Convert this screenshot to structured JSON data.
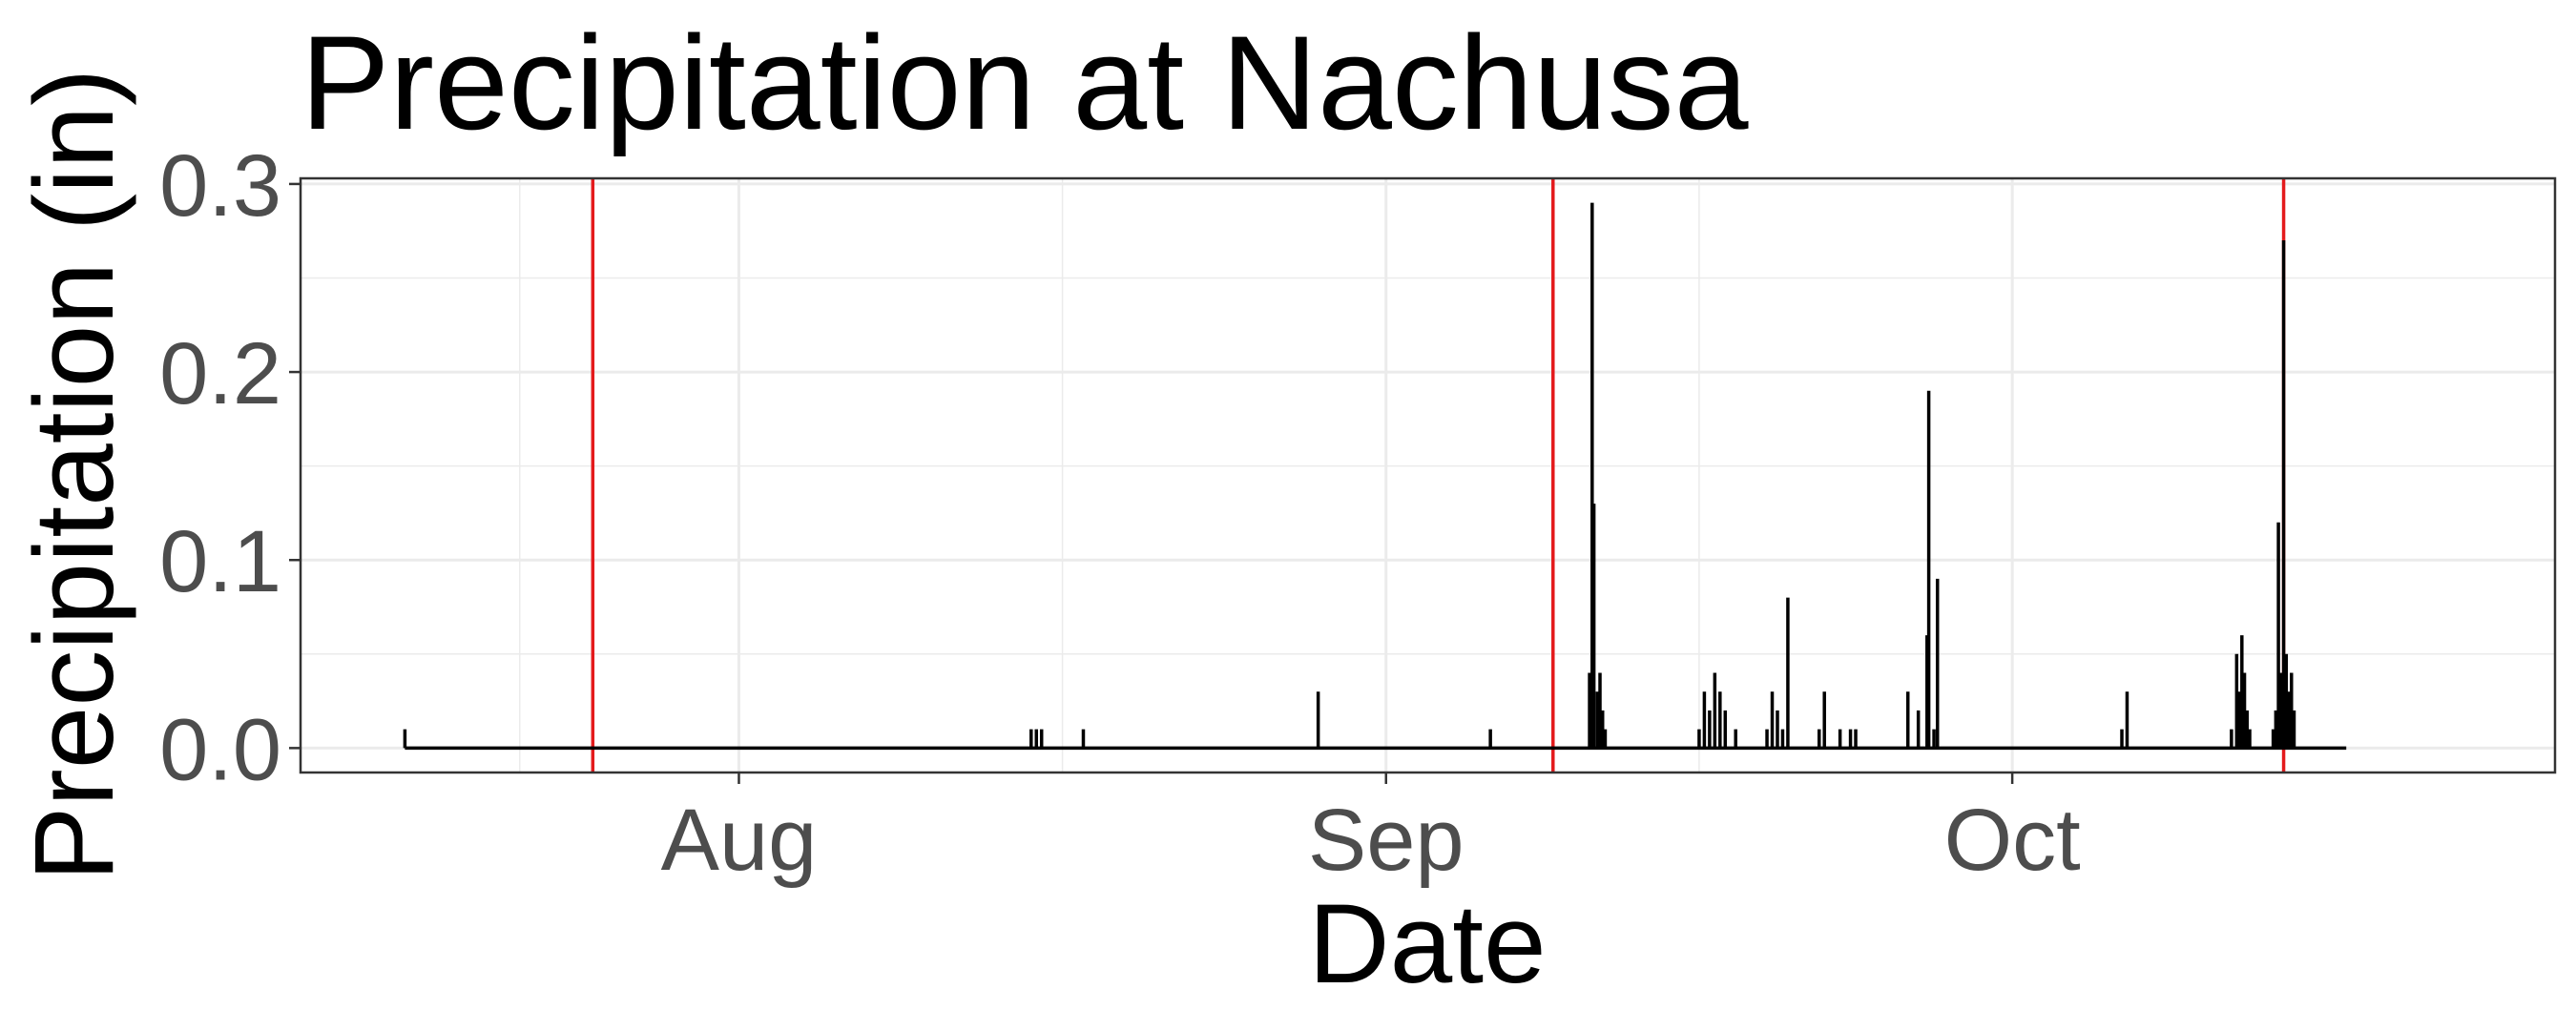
{
  "chart_data": {
    "type": "line",
    "title": "Precipitation at Nachusa",
    "xlabel": "Date",
    "ylabel": "Precipitation (in)",
    "xlim": [
      "2023-07-11",
      "2023-10-27"
    ],
    "ylim": [
      -0.013,
      0.303
    ],
    "x_ticks": [
      {
        "date": "2023-08-01",
        "label": "Aug"
      },
      {
        "date": "2023-09-01",
        "label": "Sep"
      },
      {
        "date": "2023-10-01",
        "label": "Oct"
      }
    ],
    "y_ticks": [
      {
        "value": 0.0,
        "label": "0.0"
      },
      {
        "value": 0.1,
        "label": "0.1"
      },
      {
        "value": 0.2,
        "label": "0.2"
      },
      {
        "value": 0.3,
        "label": "0.3"
      }
    ],
    "grid": true,
    "series_color": "#000000",
    "vline_color": "#e41a1c",
    "vlines": [
      "2023-07-25",
      "2023-09-09",
      "2023-10-14"
    ],
    "x_range": [
      "2023-07-16",
      "2023-10-17"
    ],
    "points": [
      {
        "x": "2023-07-16",
        "y": 0.01
      },
      {
        "x": "2023-08-15",
        "y": 0.01
      },
      {
        "x": "2023-08-15 06:00",
        "y": 0.01
      },
      {
        "x": "2023-08-15 12:00",
        "y": 0.01
      },
      {
        "x": "2023-08-17 12:00",
        "y": 0.01
      },
      {
        "x": "2023-08-28 18:00",
        "y": 0.03
      },
      {
        "x": "2023-09-06",
        "y": 0.01
      },
      {
        "x": "2023-09-10 18:00",
        "y": 0.04
      },
      {
        "x": "2023-09-10 20:00",
        "y": 0.03
      },
      {
        "x": "2023-09-10 21:00",
        "y": 0.29
      },
      {
        "x": "2023-09-10 23:00",
        "y": 0.13
      },
      {
        "x": "2023-09-11 03:00",
        "y": 0.03
      },
      {
        "x": "2023-09-11 06:00",
        "y": 0.04
      },
      {
        "x": "2023-09-11 09:00",
        "y": 0.02
      },
      {
        "x": "2023-09-11 12:00",
        "y": 0.01
      },
      {
        "x": "2023-09-16",
        "y": 0.01
      },
      {
        "x": "2023-09-16 06:00",
        "y": 0.03
      },
      {
        "x": "2023-09-16 12:00",
        "y": 0.02
      },
      {
        "x": "2023-09-16 18:00",
        "y": 0.04
      },
      {
        "x": "2023-09-17",
        "y": 0.03
      },
      {
        "x": "2023-09-17 06:00",
        "y": 0.02
      },
      {
        "x": "2023-09-17 18:00",
        "y": 0.01
      },
      {
        "x": "2023-09-19 06:00",
        "y": 0.01
      },
      {
        "x": "2023-09-19 12:00",
        "y": 0.03
      },
      {
        "x": "2023-09-19 18:00",
        "y": 0.02
      },
      {
        "x": "2023-09-20",
        "y": 0.01
      },
      {
        "x": "2023-09-20 06:00",
        "y": 0.08
      },
      {
        "x": "2023-09-21 18:00",
        "y": 0.01
      },
      {
        "x": "2023-09-22",
        "y": 0.03
      },
      {
        "x": "2023-09-22 18:00",
        "y": 0.01
      },
      {
        "x": "2023-09-23 06:00",
        "y": 0.01
      },
      {
        "x": "2023-09-23 12:00",
        "y": 0.01
      },
      {
        "x": "2023-09-26",
        "y": 0.03
      },
      {
        "x": "2023-09-26 12:00",
        "y": 0.02
      },
      {
        "x": "2023-09-26 22:00",
        "y": 0.06
      },
      {
        "x": "2023-09-27",
        "y": 0.19
      },
      {
        "x": "2023-09-27 06:00",
        "y": 0.01
      },
      {
        "x": "2023-09-27 10:00",
        "y": 0.09
      },
      {
        "x": "2023-10-06 06:00",
        "y": 0.01
      },
      {
        "x": "2023-10-06 12:00",
        "y": 0.03
      },
      {
        "x": "2023-10-11 12:00",
        "y": 0.01
      },
      {
        "x": "2023-10-11 18:00",
        "y": 0.05
      },
      {
        "x": "2023-10-11 21:00",
        "y": 0.03
      },
      {
        "x": "2023-10-12",
        "y": 0.06
      },
      {
        "x": "2023-10-12 03:00",
        "y": 0.04
      },
      {
        "x": "2023-10-12 06:00",
        "y": 0.02
      },
      {
        "x": "2023-10-12 09:00",
        "y": 0.01
      },
      {
        "x": "2023-10-13 12:00",
        "y": 0.01
      },
      {
        "x": "2023-10-13 15:00",
        "y": 0.02
      },
      {
        "x": "2023-10-13 18:00",
        "y": 0.12
      },
      {
        "x": "2023-10-13 21:00",
        "y": 0.04
      },
      {
        "x": "2023-10-14",
        "y": 0.27
      },
      {
        "x": "2023-10-14 03:00",
        "y": 0.05
      },
      {
        "x": "2023-10-14 06:00",
        "y": 0.03
      },
      {
        "x": "2023-10-14 09:00",
        "y": 0.04
      },
      {
        "x": "2023-10-14 12:00",
        "y": 0.02
      }
    ]
  }
}
